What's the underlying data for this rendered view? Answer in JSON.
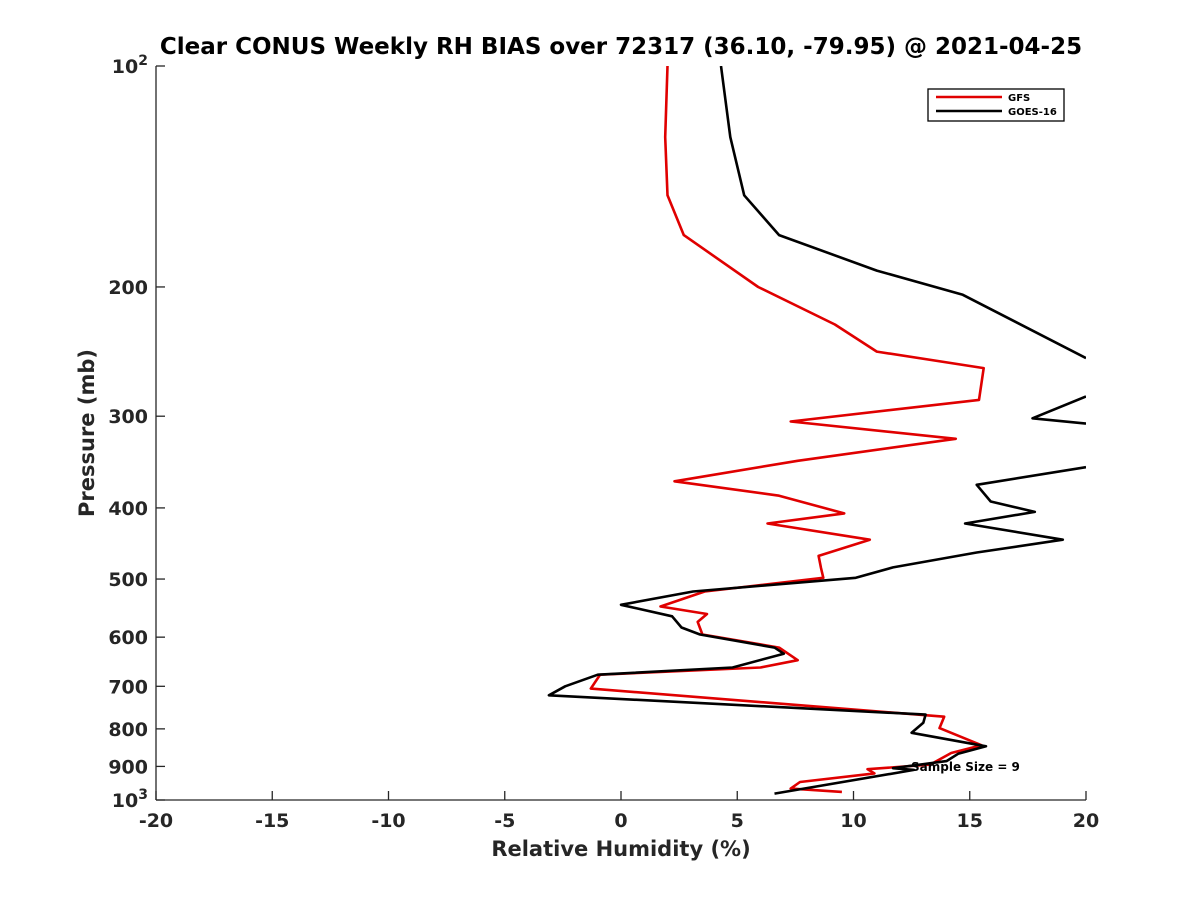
{
  "chart_data": {
    "type": "line",
    "title": "Clear CONUS Weekly RH BIAS over 72317 (36.10, -79.95) @ 2021-04-25",
    "xlabel": "Relative Humidity (%)",
    "ylabel": "Pressure (mb)",
    "xlim": [
      -20,
      20
    ],
    "ylim": [
      100,
      1000
    ],
    "y_scale": "log",
    "y_reversed": true,
    "x_ticks": [
      {
        "value": -20,
        "label": "-20"
      },
      {
        "value": -15,
        "label": "-15"
      },
      {
        "value": -10,
        "label": "-10"
      },
      {
        "value": -5,
        "label": "-5"
      },
      {
        "value": 0,
        "label": "0"
      },
      {
        "value": 5,
        "label": "5"
      },
      {
        "value": 10,
        "label": "10"
      },
      {
        "value": 15,
        "label": "15"
      },
      {
        "value": 20,
        "label": "20"
      }
    ],
    "y_ticks": [
      {
        "value": 100,
        "label": "10",
        "sup": "2"
      },
      {
        "value": 200,
        "label": "200"
      },
      {
        "value": 300,
        "label": "300"
      },
      {
        "value": 400,
        "label": "400"
      },
      {
        "value": 500,
        "label": "500"
      },
      {
        "value": 600,
        "label": "600"
      },
      {
        "value": 700,
        "label": "700"
      },
      {
        "value": 800,
        "label": "800"
      },
      {
        "value": 900,
        "label": "900"
      },
      {
        "value": 1000,
        "label": "10",
        "sup": "3"
      }
    ],
    "grid": false,
    "legend_position": "top-right",
    "annotation": "Sample Size = 9",
    "series": [
      {
        "name": "GFS",
        "color": "#e00000",
        "points": [
          [
            2.0,
            100
          ],
          [
            1.9,
            125
          ],
          [
            2.0,
            150
          ],
          [
            2.7,
            170
          ],
          [
            5.9,
            200
          ],
          [
            9.2,
            225
          ],
          [
            11.0,
            245
          ],
          [
            15.6,
            258
          ],
          [
            15.4,
            285
          ],
          [
            7.3,
            305
          ],
          [
            14.4,
            322
          ],
          [
            7.6,
            345
          ],
          [
            2.3,
            368
          ],
          [
            6.8,
            385
          ],
          [
            9.6,
            407
          ],
          [
            6.3,
            420
          ],
          [
            10.7,
            442
          ],
          [
            8.5,
            465
          ],
          [
            8.6,
            483
          ],
          [
            8.7,
            498
          ],
          [
            3.6,
            520
          ],
          [
            1.7,
            545
          ],
          [
            3.7,
            558
          ],
          [
            3.3,
            572
          ],
          [
            3.5,
            595
          ],
          [
            6.8,
            620
          ],
          [
            7.6,
            645
          ],
          [
            6.0,
            660
          ],
          [
            -0.9,
            675
          ],
          [
            -1.3,
            705
          ],
          [
            13.9,
            770
          ],
          [
            13.7,
            798
          ],
          [
            15.5,
            842
          ],
          [
            14.2,
            863
          ],
          [
            13.3,
            895
          ],
          [
            10.6,
            908
          ],
          [
            10.9,
            920
          ],
          [
            7.7,
            945
          ],
          [
            7.3,
            965
          ],
          [
            9.5,
            975
          ]
        ]
      },
      {
        "name": "GOES-16",
        "color": "#000000",
        "points": [
          [
            4.3,
            100
          ],
          [
            4.7,
            125
          ],
          [
            5.3,
            150
          ],
          [
            6.8,
            170
          ],
          [
            11.0,
            190
          ],
          [
            14.7,
            205
          ],
          [
            20.0,
            250
          ],
          [
            null,
            null
          ],
          [
            20.0,
            282
          ],
          [
            17.7,
            302
          ],
          [
            20.0,
            307
          ],
          [
            null,
            null
          ],
          [
            20.0,
            352
          ],
          [
            15.3,
            372
          ],
          [
            15.9,
            392
          ],
          [
            17.8,
            405
          ],
          [
            14.8,
            420
          ],
          [
            19.0,
            442
          ],
          [
            15.3,
            460
          ],
          [
            11.7,
            482
          ],
          [
            10.1,
            498
          ],
          [
            3.1,
            520
          ],
          [
            0.0,
            542
          ],
          [
            2.2,
            562
          ],
          [
            2.6,
            582
          ],
          [
            3.4,
            595
          ],
          [
            6.6,
            620
          ],
          [
            7.0,
            632
          ],
          [
            4.8,
            660
          ],
          [
            -1.0,
            675
          ],
          [
            -2.4,
            700
          ],
          [
            -3.1,
            720
          ],
          [
            13.1,
            765
          ],
          [
            13.0,
            785
          ],
          [
            12.5,
            810
          ],
          [
            15.7,
            845
          ],
          [
            14.5,
            865
          ],
          [
            14.0,
            885
          ],
          [
            11.7,
            905
          ],
          [
            12.6,
            910
          ],
          [
            6.6,
            980
          ]
        ]
      }
    ]
  }
}
